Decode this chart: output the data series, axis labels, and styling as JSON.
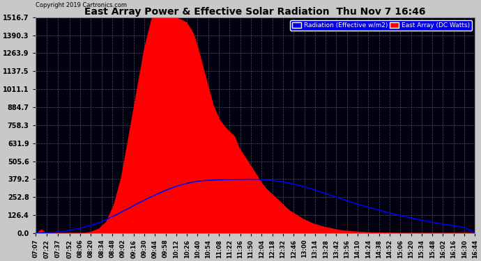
{
  "title": "East Array Power & Effective Solar Radiation  Thu Nov 7 16:46",
  "copyright": "Copyright 2019 Cartronics.com",
  "legend_radiation": "Radiation (Effective w/m2)",
  "legend_east": "East Array (DC Watts)",
  "yticks": [
    0.0,
    126.4,
    252.8,
    379.2,
    505.6,
    631.9,
    758.3,
    884.7,
    1011.1,
    1137.5,
    1263.9,
    1390.3,
    1516.7
  ],
  "ylim": [
    0.0,
    1516.7
  ],
  "background_color": "#c8c8c8",
  "plot_bg_color": "#000010",
  "grid_color": "#666666",
  "red_color": "#ff0000",
  "blue_color": "#0000ee",
  "title_color": "#000000",
  "xtick_labels": [
    "07:07",
    "07:22",
    "07:37",
    "07:52",
    "08:06",
    "08:20",
    "08:34",
    "08:48",
    "09:02",
    "09:16",
    "09:30",
    "09:44",
    "09:58",
    "10:12",
    "10:26",
    "10:40",
    "10:54",
    "11:08",
    "11:22",
    "11:36",
    "11:50",
    "12:04",
    "12:18",
    "12:32",
    "12:46",
    "13:00",
    "13:14",
    "13:28",
    "13:42",
    "13:56",
    "14:10",
    "14:24",
    "14:38",
    "14:52",
    "15:06",
    "15:20",
    "15:34",
    "15:48",
    "16:02",
    "16:16",
    "16:30",
    "16:44"
  ],
  "red_keyframes_min": [
    427,
    430,
    432,
    435,
    437,
    440,
    443,
    448,
    452,
    458,
    462,
    468,
    474,
    480,
    486,
    492,
    500,
    510,
    520,
    530,
    540,
    550,
    560,
    570,
    580,
    590,
    600,
    610,
    618,
    625,
    630,
    635,
    640,
    645,
    650,
    660,
    668,
    675,
    680,
    688,
    694,
    700,
    706,
    712,
    718,
    724,
    730,
    736,
    742,
    748,
    754,
    760,
    766,
    772,
    778,
    784,
    790,
    796,
    802,
    808,
    814,
    820,
    826,
    832,
    838,
    844,
    850,
    856,
    862,
    868,
    874,
    880,
    886,
    892,
    898,
    904,
    910,
    916,
    922,
    928,
    934,
    940,
    946,
    952,
    958,
    964,
    970,
    976,
    982,
    988,
    994,
    1000,
    1004
  ],
  "red_keyframes_val": [
    0,
    5,
    15,
    25,
    15,
    5,
    0,
    0,
    0,
    0,
    0,
    0,
    0,
    0,
    0,
    0,
    10,
    30,
    80,
    200,
    400,
    700,
    1000,
    1300,
    1516,
    1516,
    1516,
    1516,
    1500,
    1480,
    1440,
    1390,
    1300,
    1200,
    1100,
    900,
    800,
    750,
    720,
    680,
    600,
    550,
    500,
    450,
    400,
    350,
    310,
    280,
    250,
    220,
    190,
    160,
    140,
    120,
    100,
    85,
    70,
    60,
    50,
    42,
    35,
    28,
    22,
    18,
    15,
    12,
    10,
    8,
    6,
    5,
    4,
    3,
    2,
    1,
    1,
    0,
    0,
    0,
    0,
    0,
    0,
    0,
    0,
    0,
    0,
    0,
    0,
    0,
    0,
    0,
    0,
    0,
    0
  ],
  "blue_keyframes_min": [
    427,
    450,
    460,
    470,
    480,
    490,
    500,
    510,
    520,
    530,
    540,
    550,
    560,
    570,
    580,
    590,
    600,
    610,
    620,
    630,
    640,
    650,
    660,
    670,
    680,
    690,
    700,
    710,
    720,
    730,
    740,
    750,
    760,
    770,
    780,
    790,
    800,
    810,
    820,
    830,
    840,
    850,
    860,
    870,
    880,
    890,
    900,
    910,
    920,
    930,
    940,
    950,
    960,
    970,
    980,
    990,
    1004
  ],
  "blue_keyframes_val": [
    0,
    5,
    10,
    18,
    28,
    40,
    55,
    72,
    95,
    120,
    148,
    175,
    205,
    232,
    258,
    282,
    305,
    325,
    342,
    355,
    365,
    370,
    373,
    375,
    376,
    377,
    378,
    378,
    377,
    375,
    370,
    362,
    352,
    340,
    326,
    310,
    292,
    274,
    256,
    238,
    220,
    204,
    188,
    173,
    158,
    144,
    131,
    118,
    106,
    95,
    84,
    74,
    65,
    56,
    48,
    40,
    0
  ]
}
